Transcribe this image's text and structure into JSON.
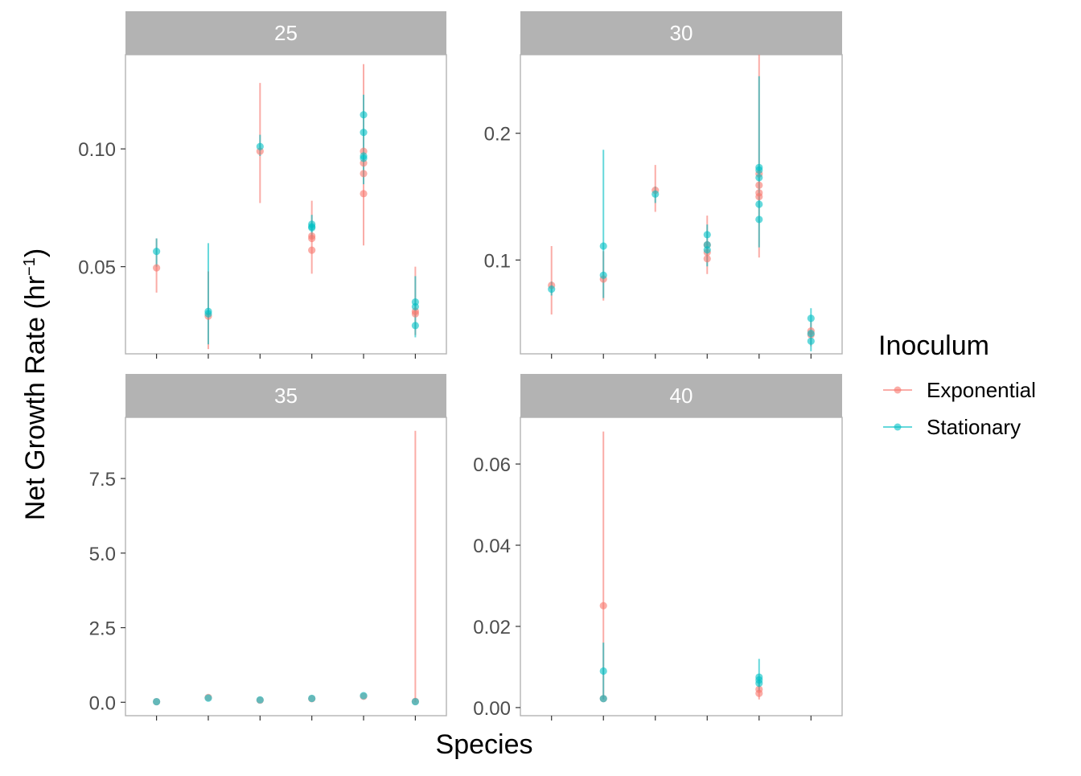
{
  "colors": {
    "Exponential": "#F8766D",
    "Stationary": "#00BFC4",
    "strip_bg": "#B3B3B3",
    "panel_border": "#B3B3B3",
    "tick_text": "#4D4D4D"
  },
  "axes": {
    "xlabel": "Species",
    "ylabel": "Net Growth Rate (hr",
    "ylabel_sup": "−1",
    "ylabel_close": ")"
  },
  "legend": {
    "title": "Inoculum",
    "position": "right",
    "entries": [
      {
        "label": "Exponential"
      },
      {
        "label": "Stationary"
      }
    ]
  },
  "chart_data": {
    "type": "scatter",
    "facets": [
      "25",
      "30",
      "35",
      "40"
    ],
    "x_categories_count": 6,
    "x_tick_labels": [
      "",
      "",
      "",
      "",
      "",
      ""
    ],
    "grid": false,
    "series_names": [
      "Exponential",
      "Stationary"
    ],
    "panels": [
      {
        "facet": "25",
        "ylim": [
          0.013,
          0.14
        ],
        "yticks": [
          0.05,
          0.1
        ],
        "ytick_labels": [
          "0.05",
          "0.10"
        ],
        "errorbars": [
          {
            "x": 1,
            "series": "Exponential",
            "lo": 0.039,
            "hi": 0.062
          },
          {
            "x": 2,
            "series": "Exponential",
            "lo": 0.015,
            "hi": 0.048
          },
          {
            "x": 3,
            "series": "Exponential",
            "lo": 0.077,
            "hi": 0.128
          },
          {
            "x": 4,
            "series": "Exponential",
            "lo": 0.047,
            "hi": 0.078
          },
          {
            "x": 5,
            "series": "Exponential",
            "lo": 0.059,
            "hi": 0.136
          },
          {
            "x": 6,
            "series": "Exponential",
            "lo": 0.021,
            "hi": 0.05
          },
          {
            "x": 1,
            "series": "Stationary",
            "lo": 0.05,
            "hi": 0.062
          },
          {
            "x": 2,
            "series": "Stationary",
            "lo": 0.017,
            "hi": 0.06
          },
          {
            "x": 3,
            "series": "Stationary",
            "lo": 0.097,
            "hi": 0.106
          },
          {
            "x": 4,
            "series": "Stationary",
            "lo": 0.062,
            "hi": 0.072
          },
          {
            "x": 5,
            "series": "Stationary",
            "lo": 0.085,
            "hi": 0.123
          },
          {
            "x": 6,
            "series": "Stationary",
            "lo": 0.02,
            "hi": 0.046
          }
        ],
        "points": [
          {
            "x": 1,
            "series": "Exponential",
            "y": 0.0495
          },
          {
            "x": 2,
            "series": "Exponential",
            "y": 0.029
          },
          {
            "x": 3,
            "series": "Exponential",
            "y": 0.099
          },
          {
            "x": 4,
            "series": "Exponential",
            "y": 0.057
          },
          {
            "x": 4,
            "series": "Exponential",
            "y": 0.062
          },
          {
            "x": 4,
            "series": "Exponential",
            "y": 0.063
          },
          {
            "x": 5,
            "series": "Exponential",
            "y": 0.081
          },
          {
            "x": 5,
            "series": "Exponential",
            "y": 0.0895
          },
          {
            "x": 5,
            "series": "Exponential",
            "y": 0.094
          },
          {
            "x": 5,
            "series": "Exponential",
            "y": 0.099
          },
          {
            "x": 6,
            "series": "Exponential",
            "y": 0.03
          },
          {
            "x": 6,
            "series": "Exponential",
            "y": 0.031
          },
          {
            "x": 1,
            "series": "Stationary",
            "y": 0.0565
          },
          {
            "x": 2,
            "series": "Stationary",
            "y": 0.03
          },
          {
            "x": 2,
            "series": "Stationary",
            "y": 0.031
          },
          {
            "x": 3,
            "series": "Stationary",
            "y": 0.101
          },
          {
            "x": 4,
            "series": "Stationary",
            "y": 0.0665
          },
          {
            "x": 4,
            "series": "Stationary",
            "y": 0.067
          },
          {
            "x": 4,
            "series": "Stationary",
            "y": 0.068
          },
          {
            "x": 5,
            "series": "Stationary",
            "y": 0.096
          },
          {
            "x": 5,
            "series": "Stationary",
            "y": 0.097
          },
          {
            "x": 5,
            "series": "Stationary",
            "y": 0.107
          },
          {
            "x": 5,
            "series": "Stationary",
            "y": 0.1145
          },
          {
            "x": 6,
            "series": "Stationary",
            "y": 0.025
          },
          {
            "x": 6,
            "series": "Stationary",
            "y": 0.033
          },
          {
            "x": 6,
            "series": "Stationary",
            "y": 0.035
          }
        ]
      },
      {
        "facet": "30",
        "ylim": [
          0.026,
          0.262
        ],
        "yticks": [
          0.1,
          0.2
        ],
        "ytick_labels": [
          "0.1",
          "0.2"
        ],
        "errorbars": [
          {
            "x": 1,
            "series": "Exponential",
            "lo": 0.057,
            "hi": 0.111
          },
          {
            "x": 2,
            "series": "Exponential",
            "lo": 0.068,
            "hi": 0.107
          },
          {
            "x": 3,
            "series": "Exponential",
            "lo": 0.138,
            "hi": 0.175
          },
          {
            "x": 4,
            "series": "Exponential",
            "lo": 0.089,
            "hi": 0.135
          },
          {
            "x": 5,
            "series": "Exponential",
            "lo": 0.102,
            "hi": 0.262
          },
          {
            "x": 6,
            "series": "Exponential",
            "lo": 0.032,
            "hi": 0.052
          },
          {
            "x": 1,
            "series": "Stationary",
            "lo": 0.072,
            "hi": 0.083
          },
          {
            "x": 2,
            "series": "Stationary",
            "lo": 0.07,
            "hi": 0.187
          },
          {
            "x": 3,
            "series": "Stationary",
            "lo": 0.145,
            "hi": 0.158
          },
          {
            "x": 4,
            "series": "Stationary",
            "lo": 0.095,
            "hi": 0.128
          },
          {
            "x": 5,
            "series": "Stationary",
            "lo": 0.11,
            "hi": 0.245
          },
          {
            "x": 6,
            "series": "Stationary",
            "lo": 0.028,
            "hi": 0.062
          }
        ],
        "points": [
          {
            "x": 1,
            "series": "Exponential",
            "y": 0.08
          },
          {
            "x": 2,
            "series": "Exponential",
            "y": 0.085
          },
          {
            "x": 3,
            "series": "Exponential",
            "y": 0.155
          },
          {
            "x": 4,
            "series": "Exponential",
            "y": 0.101
          },
          {
            "x": 4,
            "series": "Exponential",
            "y": 0.106
          },
          {
            "x": 4,
            "series": "Exponential",
            "y": 0.112
          },
          {
            "x": 5,
            "series": "Exponential",
            "y": 0.15
          },
          {
            "x": 5,
            "series": "Exponential",
            "y": 0.153
          },
          {
            "x": 5,
            "series": "Exponential",
            "y": 0.159
          },
          {
            "x": 5,
            "series": "Exponential",
            "y": 0.168
          },
          {
            "x": 6,
            "series": "Exponential",
            "y": 0.041
          },
          {
            "x": 6,
            "series": "Exponential",
            "y": 0.044
          },
          {
            "x": 1,
            "series": "Stationary",
            "y": 0.077
          },
          {
            "x": 2,
            "series": "Stationary",
            "y": 0.088
          },
          {
            "x": 2,
            "series": "Stationary",
            "y": 0.111
          },
          {
            "x": 3,
            "series": "Stationary",
            "y": 0.152
          },
          {
            "x": 4,
            "series": "Stationary",
            "y": 0.108
          },
          {
            "x": 4,
            "series": "Stationary",
            "y": 0.112
          },
          {
            "x": 4,
            "series": "Stationary",
            "y": 0.12
          },
          {
            "x": 5,
            "series": "Stationary",
            "y": 0.132
          },
          {
            "x": 5,
            "series": "Stationary",
            "y": 0.144
          },
          {
            "x": 5,
            "series": "Stationary",
            "y": 0.165
          },
          {
            "x": 5,
            "series": "Stationary",
            "y": 0.171
          },
          {
            "x": 5,
            "series": "Stationary",
            "y": 0.173
          },
          {
            "x": 6,
            "series": "Stationary",
            "y": 0.036
          },
          {
            "x": 6,
            "series": "Stationary",
            "y": 0.042
          },
          {
            "x": 6,
            "series": "Stationary",
            "y": 0.054
          }
        ]
      },
      {
        "facet": "35",
        "ylim": [
          -0.45,
          9.55
        ],
        "yticks": [
          0.0,
          2.5,
          5.0,
          7.5
        ],
        "ytick_labels": [
          "0.0",
          "2.5",
          "5.0",
          "7.5"
        ],
        "errorbars": [
          {
            "x": 6,
            "series": "Exponential",
            "lo": 0.0,
            "hi": 9.1
          }
        ],
        "points": [
          {
            "x": 1,
            "series": "Exponential",
            "y": 0.02
          },
          {
            "x": 2,
            "series": "Exponential",
            "y": 0.16
          },
          {
            "x": 3,
            "series": "Exponential",
            "y": 0.07
          },
          {
            "x": 4,
            "series": "Exponential",
            "y": 0.12
          },
          {
            "x": 5,
            "series": "Exponential",
            "y": 0.2
          },
          {
            "x": 6,
            "series": "Exponential",
            "y": 0.03
          },
          {
            "x": 1,
            "series": "Stationary",
            "y": 0.02
          },
          {
            "x": 2,
            "series": "Stationary",
            "y": 0.14
          },
          {
            "x": 3,
            "series": "Stationary",
            "y": 0.08
          },
          {
            "x": 4,
            "series": "Stationary",
            "y": 0.13
          },
          {
            "x": 5,
            "series": "Stationary",
            "y": 0.22
          },
          {
            "x": 6,
            "series": "Stationary",
            "y": 0.02
          }
        ]
      },
      {
        "facet": "40",
        "ylim": [
          -0.002,
          0.0715
        ],
        "yticks": [
          0.0,
          0.02,
          0.04,
          0.06
        ],
        "ytick_labels": [
          "0.00",
          "0.02",
          "0.04",
          "0.06"
        ],
        "errorbars": [
          {
            "x": 2,
            "series": "Exponential",
            "lo": 0.002,
            "hi": 0.068
          },
          {
            "x": 5,
            "series": "Exponential",
            "lo": 0.002,
            "hi": 0.007
          },
          {
            "x": 2,
            "series": "Stationary",
            "lo": 0.002,
            "hi": 0.016
          },
          {
            "x": 5,
            "series": "Stationary",
            "lo": 0.004,
            "hi": 0.012
          }
        ],
        "points": [
          {
            "x": 2,
            "series": "Exponential",
            "y": 0.0251
          },
          {
            "x": 2,
            "series": "Exponential",
            "y": 0.0022
          },
          {
            "x": 5,
            "series": "Exponential",
            "y": 0.0035
          },
          {
            "x": 5,
            "series": "Exponential",
            "y": 0.0045
          },
          {
            "x": 2,
            "series": "Stationary",
            "y": 0.009
          },
          {
            "x": 2,
            "series": "Stationary",
            "y": 0.0022
          },
          {
            "x": 5,
            "series": "Stationary",
            "y": 0.006
          },
          {
            "x": 5,
            "series": "Stationary",
            "y": 0.0068
          },
          {
            "x": 5,
            "series": "Stationary",
            "y": 0.0075
          }
        ]
      }
    ]
  }
}
